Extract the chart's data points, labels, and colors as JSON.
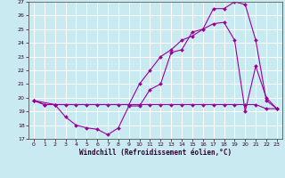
{
  "xlabel": "Windchill (Refroidissement éolien,°C)",
  "bg_color": "#c8eaf0",
  "grid_color": "#ffffff",
  "line_color": "#990099",
  "xlim": [
    -0.5,
    23.5
  ],
  "ylim": [
    17,
    27
  ],
  "yticks": [
    17,
    18,
    19,
    20,
    21,
    22,
    23,
    24,
    25,
    26,
    27
  ],
  "xticks": [
    0,
    1,
    2,
    3,
    4,
    5,
    6,
    7,
    8,
    9,
    10,
    11,
    12,
    13,
    14,
    15,
    16,
    17,
    18,
    19,
    20,
    21,
    22,
    23
  ],
  "line1_x": [
    0,
    1,
    2,
    3,
    4,
    5,
    6,
    7,
    8,
    9,
    10,
    11,
    12,
    13,
    14,
    15,
    16,
    17,
    18,
    19,
    20,
    21,
    22,
    23
  ],
  "line1_y": [
    19.8,
    19.5,
    19.5,
    18.6,
    18.0,
    17.8,
    17.7,
    17.3,
    17.8,
    19.4,
    19.4,
    20.6,
    21.0,
    23.3,
    23.5,
    24.8,
    25.0,
    25.4,
    25.5,
    24.2,
    19.0,
    22.3,
    20.0,
    19.2
  ],
  "line2_x": [
    0,
    1,
    2,
    3,
    4,
    5,
    6,
    7,
    8,
    9,
    10,
    11,
    12,
    13,
    14,
    15,
    16,
    17,
    18,
    19,
    20,
    21,
    22,
    23
  ],
  "line2_y": [
    19.8,
    19.5,
    19.5,
    19.5,
    19.5,
    19.5,
    19.5,
    19.5,
    19.5,
    19.5,
    19.5,
    19.5,
    19.5,
    19.5,
    19.5,
    19.5,
    19.5,
    19.5,
    19.5,
    19.5,
    19.5,
    19.5,
    19.2,
    19.2
  ],
  "line3_x": [
    0,
    2,
    9,
    10,
    11,
    12,
    13,
    14,
    15,
    16,
    17,
    18,
    19,
    20,
    21,
    22,
    23
  ],
  "line3_y": [
    19.8,
    19.5,
    19.5,
    21.0,
    22.0,
    23.0,
    23.5,
    24.2,
    24.5,
    25.0,
    26.5,
    26.5,
    27.0,
    26.8,
    24.2,
    19.8,
    19.2
  ]
}
